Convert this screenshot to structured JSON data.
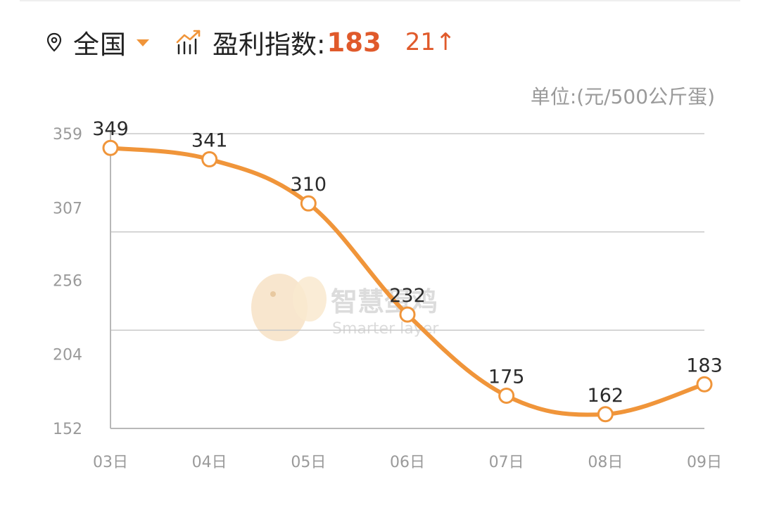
{
  "header": {
    "region": "全国",
    "index_label": "盈利指数:",
    "index_value": "183",
    "index_change": "21↑",
    "icons": {
      "location": "location-pin-icon",
      "dropdown": "caret-down-icon",
      "chart": "trend-chart-icon"
    },
    "colors": {
      "accent": "#e05a2b",
      "caret": "#f0953a"
    }
  },
  "unit_label": "单位:(元/500公斤蛋)",
  "watermark": {
    "title": "智慧蛋鸡",
    "subtitle": "Smarter layer"
  },
  "chart_data": {
    "type": "line",
    "categories": [
      "03日",
      "04日",
      "05日",
      "06日",
      "07日",
      "08日",
      "09日"
    ],
    "values": [
      349,
      341,
      310,
      232,
      175,
      162,
      183
    ],
    "data_labels": [
      "349",
      "341",
      "310",
      "232",
      "175",
      "162",
      "183"
    ],
    "yticks": [
      359,
      307,
      256,
      204,
      152
    ],
    "ylim": [
      152,
      359
    ],
    "grid": true,
    "smooth": true,
    "line_color": "#f0953a"
  }
}
